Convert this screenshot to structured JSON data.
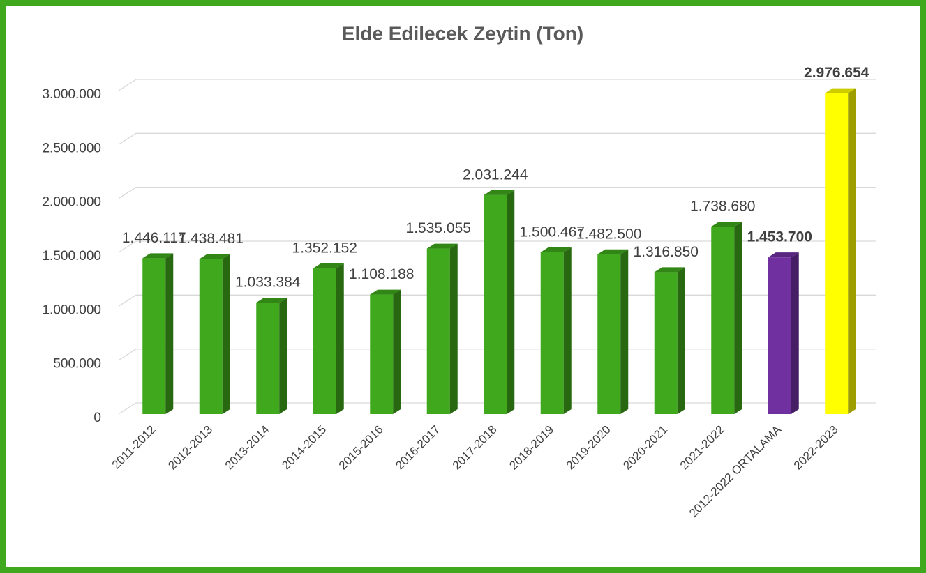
{
  "chart_data": {
    "type": "bar3d",
    "title": "Elde Edilecek Zeytin (Ton)",
    "categories": [
      "2011-2012",
      "2012-2013",
      "2013-2014",
      "2014-2015",
      "2015-2016",
      "2016-2017",
      "2017-2018",
      "2018-2019",
      "2019-2020",
      "2020-2021",
      "2021-2022",
      "2012-2022 ORTALAMA",
      "2022-2023"
    ],
    "values": [
      1446117,
      1438481,
      1033384,
      1352152,
      1108188,
      1535055,
      2031244,
      1500467,
      1482500,
      1316850,
      1738680,
      1453700,
      2976654
    ],
    "value_labels": [
      "1.446.117",
      "1.438.481",
      "1.033.384",
      "1.352.152",
      "1.108.188",
      "1.535.055",
      "2.031.244",
      "1.500.467",
      "1.482.500",
      "1.316.850",
      "1.738.680",
      "1.453.700",
      "2.976.654"
    ],
    "colors": [
      "#3fa81c",
      "#3fa81c",
      "#3fa81c",
      "#3fa81c",
      "#3fa81c",
      "#3fa81c",
      "#3fa81c",
      "#3fa81c",
      "#3fa81c",
      "#3fa81c",
      "#3fa81c",
      "#7030a0",
      "#ffff00"
    ],
    "ylim": [
      0,
      3000000
    ],
    "yticks": [
      0,
      {
        "value": 500000,
        "label": "500.000"
      },
      {
        "value": 1000000,
        "label": "1.000.000"
      },
      {
        "value": 1500000,
        "label": "1.500.000"
      },
      {
        "value": 2000000,
        "label": "2.000.000"
      },
      {
        "value": 2500000,
        "label": "2.500.000"
      },
      {
        "value": 3000000,
        "label": "3.000.000"
      }
    ],
    "grid": true
  }
}
